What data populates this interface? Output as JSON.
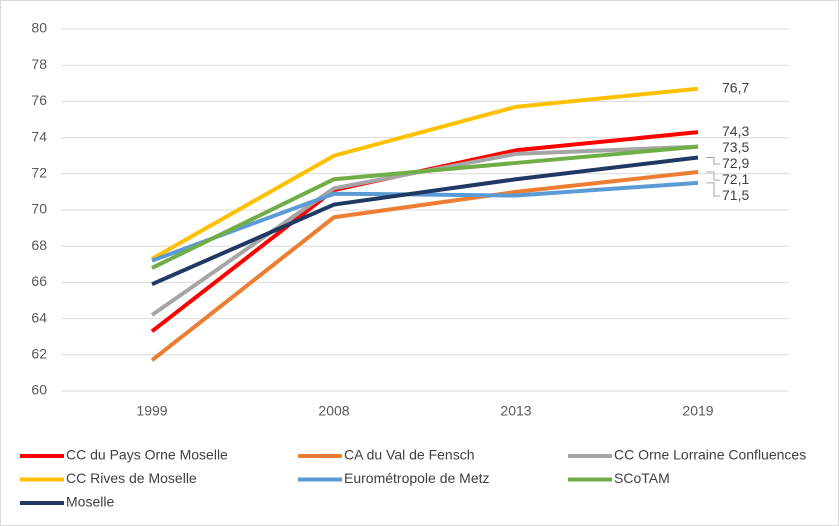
{
  "chart_data": {
    "type": "line",
    "categories": [
      "1999",
      "2008",
      "2013",
      "2019"
    ],
    "series": [
      {
        "name": "CC du Pays Orne Moselle",
        "color": "#ff0000",
        "values": [
          63.3,
          71.1,
          73.3,
          74.3
        ],
        "value_labels": [
          null,
          null,
          null,
          "74,3"
        ]
      },
      {
        "name": "CA du Val de Fensch",
        "color": "#ed7d31",
        "values": [
          61.7,
          69.6,
          71.0,
          72.1
        ],
        "value_labels": [
          null,
          null,
          null,
          "72,1"
        ]
      },
      {
        "name": "CC Orne Lorraine Confluences",
        "color": "#a5a5a5",
        "values": [
          64.2,
          71.2,
          73.1,
          73.5
        ],
        "value_labels": [
          null,
          null,
          null,
          "73,5"
        ]
      },
      {
        "name": "CC Rives de Moselle",
        "color": "#ffc000",
        "values": [
          67.3,
          73.0,
          75.7,
          76.7
        ],
        "value_labels": [
          null,
          null,
          null,
          "76,7"
        ]
      },
      {
        "name": "Eurométropole de Metz",
        "color": "#5b9bd5",
        "values": [
          67.2,
          70.9,
          70.8,
          71.5
        ],
        "value_labels": [
          null,
          null,
          null,
          "71,5"
        ]
      },
      {
        "name": "SCoTAM",
        "color": "#70ad47",
        "values": [
          66.8,
          71.7,
          72.6,
          73.5
        ]
      },
      {
        "name": "Moselle",
        "color": "#203864",
        "values": [
          65.9,
          70.3,
          71.7,
          72.9
        ],
        "value_labels": [
          null,
          null,
          null,
          "72,9"
        ]
      }
    ],
    "ylim": [
      60,
      80
    ],
    "yticks": [
      60,
      62,
      64,
      66,
      68,
      70,
      72,
      74,
      76,
      78,
      80
    ],
    "grid": true,
    "legend": "bottom"
  }
}
